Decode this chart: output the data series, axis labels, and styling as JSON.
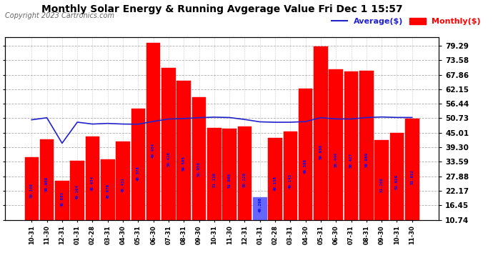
{
  "title": "Monthly Solar Energy & Running Avgerage Value Fri Dec 1 15:57",
  "copyright": "Copyright 2023 Cartronics.com",
  "categories": [
    "10-31",
    "11-30",
    "12-31",
    "01-31",
    "02-28",
    "03-31",
    "04-30",
    "05-31",
    "06-30",
    "07-31",
    "08-31",
    "09-30",
    "10-31",
    "11-30",
    "12-31",
    "01-31",
    "02-28",
    "03-31",
    "04-30",
    "05-31",
    "06-30",
    "07-31",
    "08-31",
    "09-30",
    "10-31",
    "11-30"
  ],
  "monthly_values": [
    35.5,
    42.5,
    26.0,
    34.0,
    43.5,
    34.5,
    41.5,
    54.5,
    80.5,
    70.5,
    65.5,
    59.0,
    47.0,
    46.5,
    47.5,
    19.5,
    43.0,
    45.5,
    62.5,
    79.0,
    70.0,
    69.0,
    69.5,
    42.0,
    45.0,
    50.5
  ],
  "bar_values_labels": [
    "50.108",
    "50.909",
    "40.883",
    "49.164",
    "48.434",
    "48.679",
    "48.431",
    "48.378",
    "49.484",
    "50.416",
    "50.585",
    "50.956",
    "51.136",
    "51.000",
    "50.229",
    "49.298",
    "49.138",
    "49.143",
    "49.398",
    "50.930",
    "50.444",
    "50.427",
    "50.989",
    "51.208",
    "51.029",
    "51.012"
  ],
  "bar_label_colors": [
    "blue",
    "blue",
    "blue",
    "blue",
    "blue",
    "blue",
    "blue",
    "blue",
    "blue",
    "blue",
    "blue",
    "blue",
    "blue",
    "blue",
    "blue",
    "blue",
    "blue",
    "blue",
    "blue",
    "blue",
    "blue",
    "blue",
    "blue",
    "blue",
    "blue",
    "blue"
  ],
  "special_bar_index": 15,
  "running_avg": [
    50.108,
    50.909,
    40.883,
    49.164,
    48.434,
    48.679,
    48.431,
    48.378,
    49.484,
    50.416,
    50.585,
    50.956,
    51.136,
    51.0,
    50.229,
    49.298,
    49.138,
    49.143,
    49.398,
    50.93,
    50.444,
    50.427,
    50.989,
    51.208,
    51.029,
    51.012
  ],
  "bar_color": "#ff0000",
  "special_bar_color": "#6666ff",
  "avg_line_color": "#2222cc",
  "label_color_blue": "#0000ff",
  "yticks": [
    10.74,
    16.45,
    22.17,
    27.88,
    33.59,
    39.3,
    45.01,
    50.73,
    56.44,
    62.15,
    67.86,
    73.58,
    79.29
  ],
  "ylim_min": 10.74,
  "ylim_max": 82.5,
  "background_color": "#ffffff",
  "grid_color": "#999999",
  "title_fontsize": 10,
  "copyright_fontsize": 7,
  "legend_avg_label": "Average($)",
  "legend_monthly_label": "Monthly($)"
}
